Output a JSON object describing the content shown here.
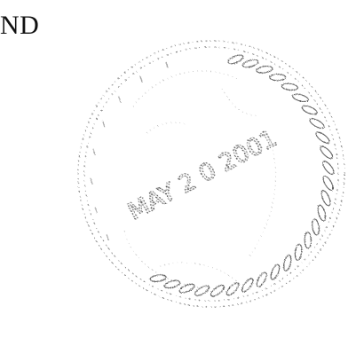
{
  "document": {
    "cut_off_text": "ND",
    "seal": {
      "kind": "embossed notary seal",
      "date_stamp": "MAY 2 0 2001",
      "ink_color": "#444444"
    }
  }
}
